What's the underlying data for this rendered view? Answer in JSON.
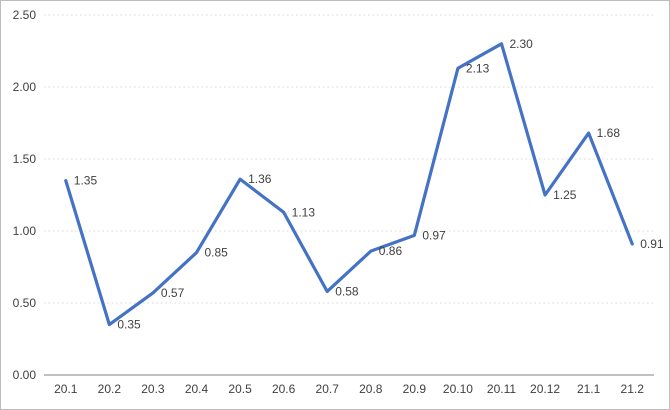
{
  "chart_data": {
    "type": "line",
    "categories": [
      "20.1",
      "20.2",
      "20.3",
      "20.4",
      "20.5",
      "20.6",
      "20.7",
      "20.8",
      "20.9",
      "20.10",
      "20.11",
      "20.12",
      "21.1",
      "21.2"
    ],
    "values": [
      1.35,
      0.35,
      0.57,
      0.85,
      1.36,
      1.13,
      0.58,
      0.86,
      0.97,
      2.13,
      2.3,
      1.25,
      1.68,
      0.91
    ],
    "data_labels": [
      "1.35",
      "0.35",
      "0.57",
      "0.85",
      "1.36",
      "1.13",
      "0.58",
      "0.86",
      "0.97",
      "2.13",
      "2.30",
      "1.25",
      "1.68",
      "0.91"
    ],
    "title": "",
    "xlabel": "",
    "ylabel": "",
    "ylim": [
      0,
      2.5
    ],
    "y_ticks": [
      0.0,
      0.5,
      1.0,
      1.5,
      2.0,
      2.5
    ],
    "y_tick_labels": [
      "0.00",
      "0.50",
      "1.00",
      "1.50",
      "2.00",
      "2.50"
    ],
    "grid": "horizontal dotted gridlines at each y tick",
    "legend": "none",
    "colors": {
      "line": "#4472C4",
      "label_text": "#404040",
      "axis": "#808080",
      "gridline": "#d9d9d9",
      "chart_border": "#bdbdbd",
      "background": "#ffffff"
    }
  }
}
